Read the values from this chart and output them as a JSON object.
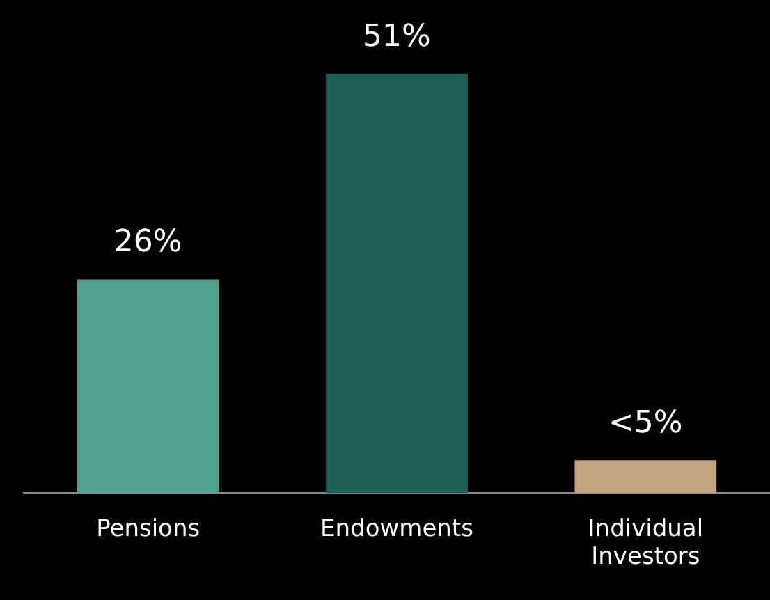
{
  "chart_data": {
    "type": "bar",
    "categories": [
      "Pensions",
      "Endowments",
      "Individual Investors"
    ],
    "values": [
      26,
      51,
      4
    ],
    "colors": [
      "#52a08e",
      "#1f5e59",
      "#c4a47f"
    ],
    "value_labels": [
      "26%",
      "51%",
      "<5%"
    ]
  }
}
